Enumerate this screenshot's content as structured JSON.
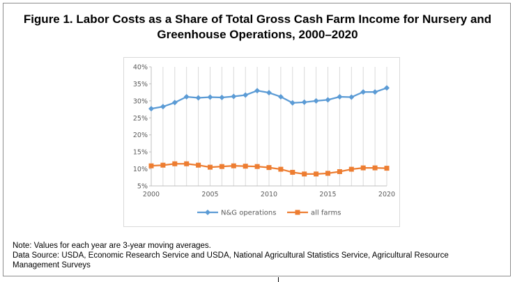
{
  "figure": {
    "title_line1": "Figure 1. Labor Costs as a Share of Total Gross Cash Farm Income for Nursery and",
    "title_line2": "Greenhouse Operations, 2000–2020",
    "note_line1": "Note: Values for each year are 3-year moving averages.",
    "note_line2": "Data Source: USDA, Economic Research Service and USDA, National Agricultural Statistics Service, Agricultural Resource",
    "note_line3": "Management Surveys"
  },
  "chart_data": {
    "type": "line",
    "title": "",
    "xlabel": "",
    "ylabel": "",
    "x": [
      2000,
      2001,
      2002,
      2003,
      2004,
      2005,
      2006,
      2007,
      2008,
      2009,
      2010,
      2011,
      2012,
      2013,
      2014,
      2015,
      2016,
      2017,
      2018,
      2019,
      2020
    ],
    "xlim": [
      2000,
      2020
    ],
    "x_ticks": [
      2000,
      2005,
      2010,
      2015,
      2020
    ],
    "ylim": [
      0.05,
      0.4
    ],
    "y_ticks": [
      0.05,
      0.1,
      0.15,
      0.2,
      0.25,
      0.3,
      0.35,
      0.4
    ],
    "y_tick_labels": [
      "5%",
      "10%",
      "15%",
      "20%",
      "25%",
      "30%",
      "35%",
      "40%"
    ],
    "grid": "vertical",
    "legend_position": "bottom",
    "series": [
      {
        "name": "N&G operations",
        "color": "#5b9bd5",
        "marker": "diamond",
        "values": [
          0.277,
          0.283,
          0.295,
          0.312,
          0.309,
          0.311,
          0.31,
          0.313,
          0.317,
          0.33,
          0.324,
          0.312,
          0.294,
          0.296,
          0.3,
          0.303,
          0.312,
          0.311,
          0.326,
          0.326,
          0.338
        ]
      },
      {
        "name": "all farms",
        "color": "#ed7d31",
        "marker": "square",
        "values": [
          0.109,
          0.111,
          0.115,
          0.115,
          0.111,
          0.105,
          0.107,
          0.109,
          0.108,
          0.107,
          0.104,
          0.099,
          0.09,
          0.085,
          0.085,
          0.087,
          0.092,
          0.099,
          0.103,
          0.103,
          0.102
        ]
      }
    ]
  }
}
